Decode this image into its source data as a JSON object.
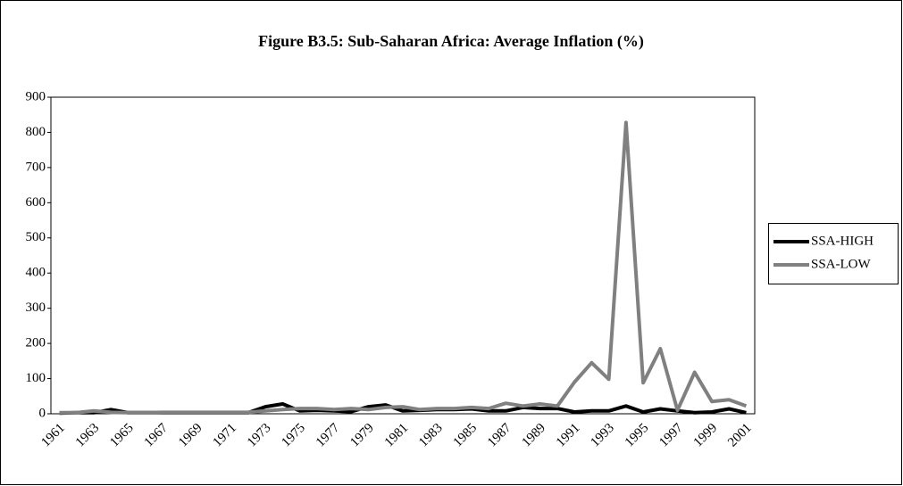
{
  "chart_data": {
    "type": "line",
    "title": "Figure B3.5: Sub-Saharan Africa: Average Inflation (%)",
    "categories": [
      "1961",
      null,
      "1963",
      null,
      "1965",
      null,
      "1967",
      null,
      "1969",
      null,
      "1971",
      null,
      "1973",
      null,
      "1975",
      null,
      "1977",
      null,
      "1979",
      null,
      "1981",
      null,
      "1983",
      null,
      "1985",
      null,
      "1987",
      null,
      "1989",
      null,
      "1991",
      null,
      "1993",
      null,
      "1995",
      null,
      "1997",
      null,
      "1999",
      null,
      "2001"
    ],
    "series": [
      {
        "name": "SSA-HIGH",
        "color": "#000000",
        "values": [
          2,
          3,
          3,
          12,
          3,
          3,
          3,
          3,
          3,
          3,
          3,
          3,
          20,
          28,
          8,
          10,
          8,
          6,
          20,
          25,
          8,
          10,
          12,
          12,
          14,
          8,
          8,
          18,
          15,
          15,
          5,
          8,
          8,
          22,
          5,
          14,
          8,
          3,
          5,
          14,
          3
        ]
      },
      {
        "name": "SSA-LOW",
        "color": "#808080",
        "values": [
          3,
          3,
          8,
          4,
          3,
          3,
          4,
          4,
          4,
          4,
          4,
          4,
          8,
          12,
          15,
          15,
          12,
          15,
          12,
          18,
          20,
          12,
          15,
          15,
          18,
          15,
          30,
          22,
          28,
          22,
          90,
          145,
          98,
          828,
          88,
          185,
          10,
          118,
          35,
          40,
          22
        ]
      }
    ],
    "ylim": [
      0,
      900
    ],
    "yticks": [
      0,
      100,
      200,
      300,
      400,
      500,
      600,
      700,
      800,
      900
    ],
    "legend": "right"
  }
}
